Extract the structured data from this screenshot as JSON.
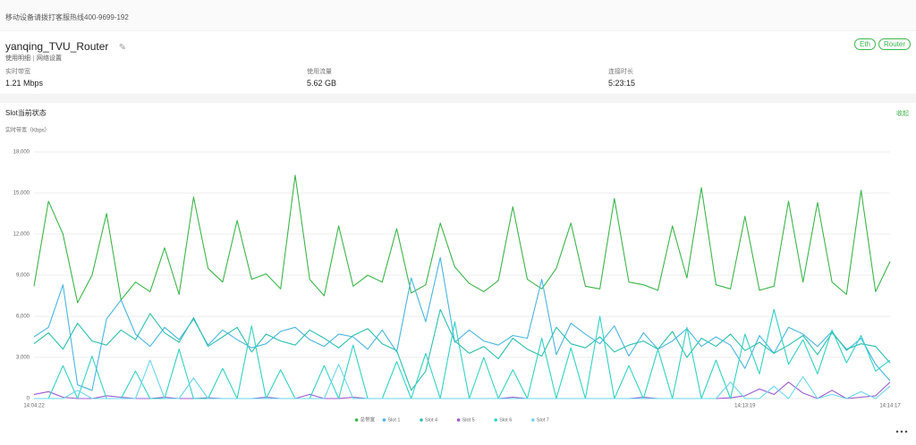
{
  "top_bar": {
    "notice": "移动设备请拨打客服热线400-9699-192"
  },
  "device": {
    "name": "yanqing_TVU_Router",
    "links": [
      "使用明细",
      "网络设置"
    ],
    "tags": [
      "Eth",
      "Router"
    ],
    "stats": [
      {
        "label": "实时带宽",
        "value": "1.21 Mbps"
      },
      {
        "label": "使用流量",
        "value": "5.62 GB"
      },
      {
        "label": "连接时长",
        "value": "5:23:15"
      }
    ]
  },
  "panel": {
    "title": "Slot当前状态",
    "toggle": "收起"
  },
  "chart_data": {
    "type": "line",
    "y_label": "实时带宽（Kbps）",
    "categories": [
      "14:04:22",
      null,
      null,
      null,
      null,
      null,
      null,
      null,
      null,
      null,
      null,
      null,
      null,
      null,
      null,
      null,
      null,
      null,
      null,
      null,
      null,
      null,
      null,
      null,
      null,
      null,
      null,
      null,
      null,
      null,
      null,
      null,
      null,
      null,
      null,
      null,
      null,
      null,
      null,
      null,
      null,
      null,
      null,
      null,
      null,
      null,
      null,
      null,
      null,
      "14:13:19",
      null,
      null,
      null,
      null,
      null,
      null,
      null,
      null,
      null,
      "14:14:17"
    ],
    "ylim": [
      0,
      18000
    ],
    "yticks": [
      0,
      {
        "value": 3000,
        "label": "3,000"
      },
      {
        "value": 6000,
        "label": "6,000"
      },
      {
        "value": 9000,
        "label": "9,000"
      },
      {
        "value": 12000,
        "label": "12,000"
      },
      {
        "value": 15000,
        "label": "15,000"
      },
      {
        "value": 18000,
        "label": "18,000"
      }
    ],
    "grid": true,
    "legend": "bottom",
    "series": [
      {
        "name": "总带宽",
        "color": "#3cb54a",
        "values": [
          8200,
          14400,
          12000,
          7000,
          9000,
          13500,
          7200,
          8500,
          7800,
          11000,
          7600,
          14700,
          9500,
          8500,
          13000,
          8700,
          9100,
          8000,
          16300,
          8700,
          7500,
          12600,
          8200,
          9000,
          8500,
          12400,
          7700,
          8300,
          12800,
          9600,
          8400,
          7800,
          8600,
          14000,
          8700,
          8000,
          9500,
          12800,
          8200,
          8000,
          14600,
          8500,
          8300,
          7900,
          12600,
          8800,
          15400,
          8300,
          8000,
          13300,
          7900,
          8200,
          14400,
          8500,
          14300,
          8500,
          7600,
          15200,
          7800,
          10000
        ]
      },
      {
        "name": "Slot 1",
        "color": "#4ab5e0",
        "values": [
          4500,
          5200,
          8300,
          1000,
          600,
          5800,
          7200,
          4700,
          3800,
          5200,
          4300,
          5800,
          3900,
          5000,
          4300,
          3700,
          4000,
          4900,
          5200,
          4300,
          3800,
          4700,
          4500,
          3600,
          5000,
          3400,
          8800,
          5600,
          10300,
          4100,
          5000,
          4200,
          3900,
          4600,
          4400,
          8700,
          3200,
          5500,
          4700,
          4000,
          5300,
          3100,
          4800,
          3600,
          4200,
          5100,
          3800,
          4500,
          3900,
          2200,
          4600,
          3300,
          5200,
          4700,
          3800,
          4900,
          3500,
          4400,
          2500,
          1300
        ]
      },
      {
        "name": "Slot 4",
        "color": "#2bbfae",
        "values": [
          4000,
          4800,
          3600,
          5500,
          4200,
          3900,
          5000,
          4300,
          6200,
          4800,
          4100,
          5900,
          3800,
          4500,
          5200,
          3400,
          4700,
          4200,
          3900,
          5000,
          4400,
          3700,
          4600,
          5100,
          4000,
          3500,
          600,
          2000,
          6500,
          4200,
          3300,
          3800,
          2900,
          4400,
          3600,
          3100,
          5200,
          4000,
          3700,
          4500,
          3400,
          3900,
          4200,
          3600,
          4900,
          3000,
          4400,
          3800,
          4700,
          3500,
          4100,
          3300,
          3900,
          4600,
          3200,
          4800,
          3600,
          4000,
          3800,
          2600
        ]
      },
      {
        "name": "Slot 5",
        "color": "#9b59d0",
        "values": [
          300,
          500,
          100,
          0,
          0,
          200,
          100,
          0,
          0,
          100,
          0,
          0,
          50,
          0,
          0,
          0,
          100,
          0,
          0,
          300,
          0,
          0,
          100,
          0,
          0,
          0,
          0,
          0,
          0,
          0,
          0,
          0,
          0,
          100,
          0,
          0,
          0,
          0,
          0,
          0,
          0,
          0,
          100,
          0,
          0,
          0,
          0,
          0,
          50,
          200,
          700,
          300,
          1200,
          400,
          0,
          600,
          0,
          100,
          200,
          1200
        ]
      },
      {
        "name": "Slot 6",
        "color": "#33d1c4",
        "values": [
          0,
          0,
          2400,
          0,
          3100,
          0,
          0,
          2000,
          0,
          0,
          3600,
          0,
          0,
          2200,
          0,
          5300,
          0,
          2100,
          0,
          0,
          2400,
          0,
          3900,
          0,
          0,
          2700,
          0,
          3300,
          0,
          5600,
          0,
          3000,
          0,
          2100,
          0,
          4400,
          0,
          3700,
          0,
          6000,
          0,
          2400,
          0,
          3600,
          0,
          5200,
          0,
          2800,
          0,
          4700,
          1800,
          6500,
          2500,
          4300,
          1800,
          5000,
          2600,
          4600,
          2000,
          2800
        ]
      },
      {
        "name": "Slot 7",
        "color": "#6ad6ec",
        "values": [
          0,
          0,
          0,
          600,
          0,
          0,
          0,
          0,
          2800,
          0,
          0,
          1500,
          0,
          0,
          0,
          0,
          0,
          0,
          0,
          0,
          0,
          2500,
          0,
          0,
          0,
          0,
          0,
          0,
          0,
          0,
          0,
          0,
          0,
          0,
          0,
          0,
          0,
          0,
          0,
          0,
          0,
          0,
          0,
          0,
          0,
          0,
          0,
          0,
          1200,
          0,
          0,
          900,
          0,
          1600,
          0,
          300,
          0,
          500,
          0,
          900
        ]
      }
    ]
  }
}
